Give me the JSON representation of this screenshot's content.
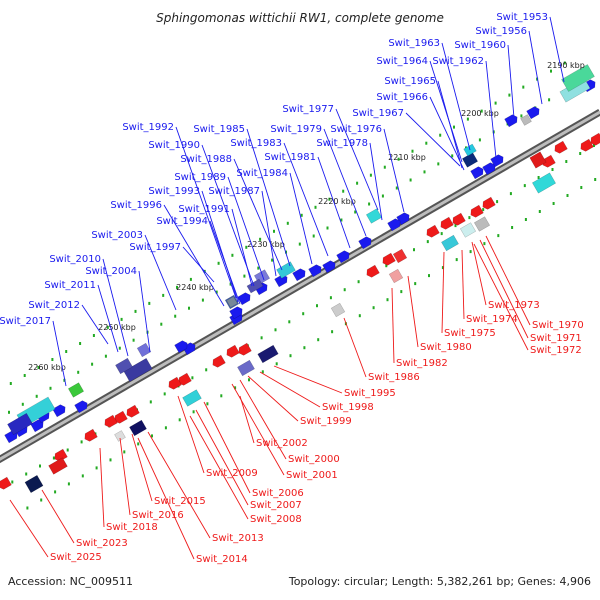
{
  "title": "Sphingomonas wittichii RW1, complete genome",
  "accession": "Accession: NC_009511",
  "summary": "Topology: circular; Length: 5,382,261 bp; Genes: 4,906",
  "colors": {
    "forward": "#1a1aee",
    "reverse": "#ee1a1a",
    "backbone": "#888888",
    "tick": "#22aa22"
  },
  "kbp_labels": [
    "2190 kbp",
    "2200 kbp",
    "2210 kbp",
    "2220 kbp",
    "2230 kbp",
    "2240 kbp",
    "2250 kbp",
    "2260 kbp"
  ],
  "forward_labels": [
    "Swit_1953",
    "Swit_1956",
    "Swit_1960",
    "Swit_1962",
    "Swit_1963",
    "Swit_1964",
    "Swit_1965",
    "Swit_1966",
    "Swit_1967",
    "Swit_1976",
    "Swit_1977",
    "Swit_1978",
    "Swit_1979",
    "Swit_1981",
    "Swit_1983",
    "Swit_1984",
    "Swit_1985",
    "Swit_1987",
    "Swit_1988",
    "Swit_1989",
    "Swit_1990",
    "Swit_1991",
    "Swit_1992",
    "Swit_1993",
    "Swit_1994",
    "Swit_1996",
    "Swit_1997",
    "Swit_2003",
    "Swit_2004",
    "Swit_2010",
    "Swit_2011",
    "Swit_2012",
    "Swit_2017"
  ],
  "reverse_labels": [
    "Swit_1970",
    "Swit_1971",
    "Swit_1972",
    "Swit_1973",
    "Swit_1974",
    "Swit_1975",
    "Swit_1980",
    "Swit_1982",
    "Swit_1986",
    "Swit_1995",
    "Swit_1998",
    "Swit_1999",
    "Swit_2000",
    "Swit_2001",
    "Swit_2002",
    "Swit_2006",
    "Swit_2007",
    "Swit_2008",
    "Swit_2009",
    "Swit_2013",
    "Swit_2014",
    "Swit_2015",
    "Swit_2016",
    "Swit_2018",
    "Swit_2023",
    "Swit_2025"
  ]
}
